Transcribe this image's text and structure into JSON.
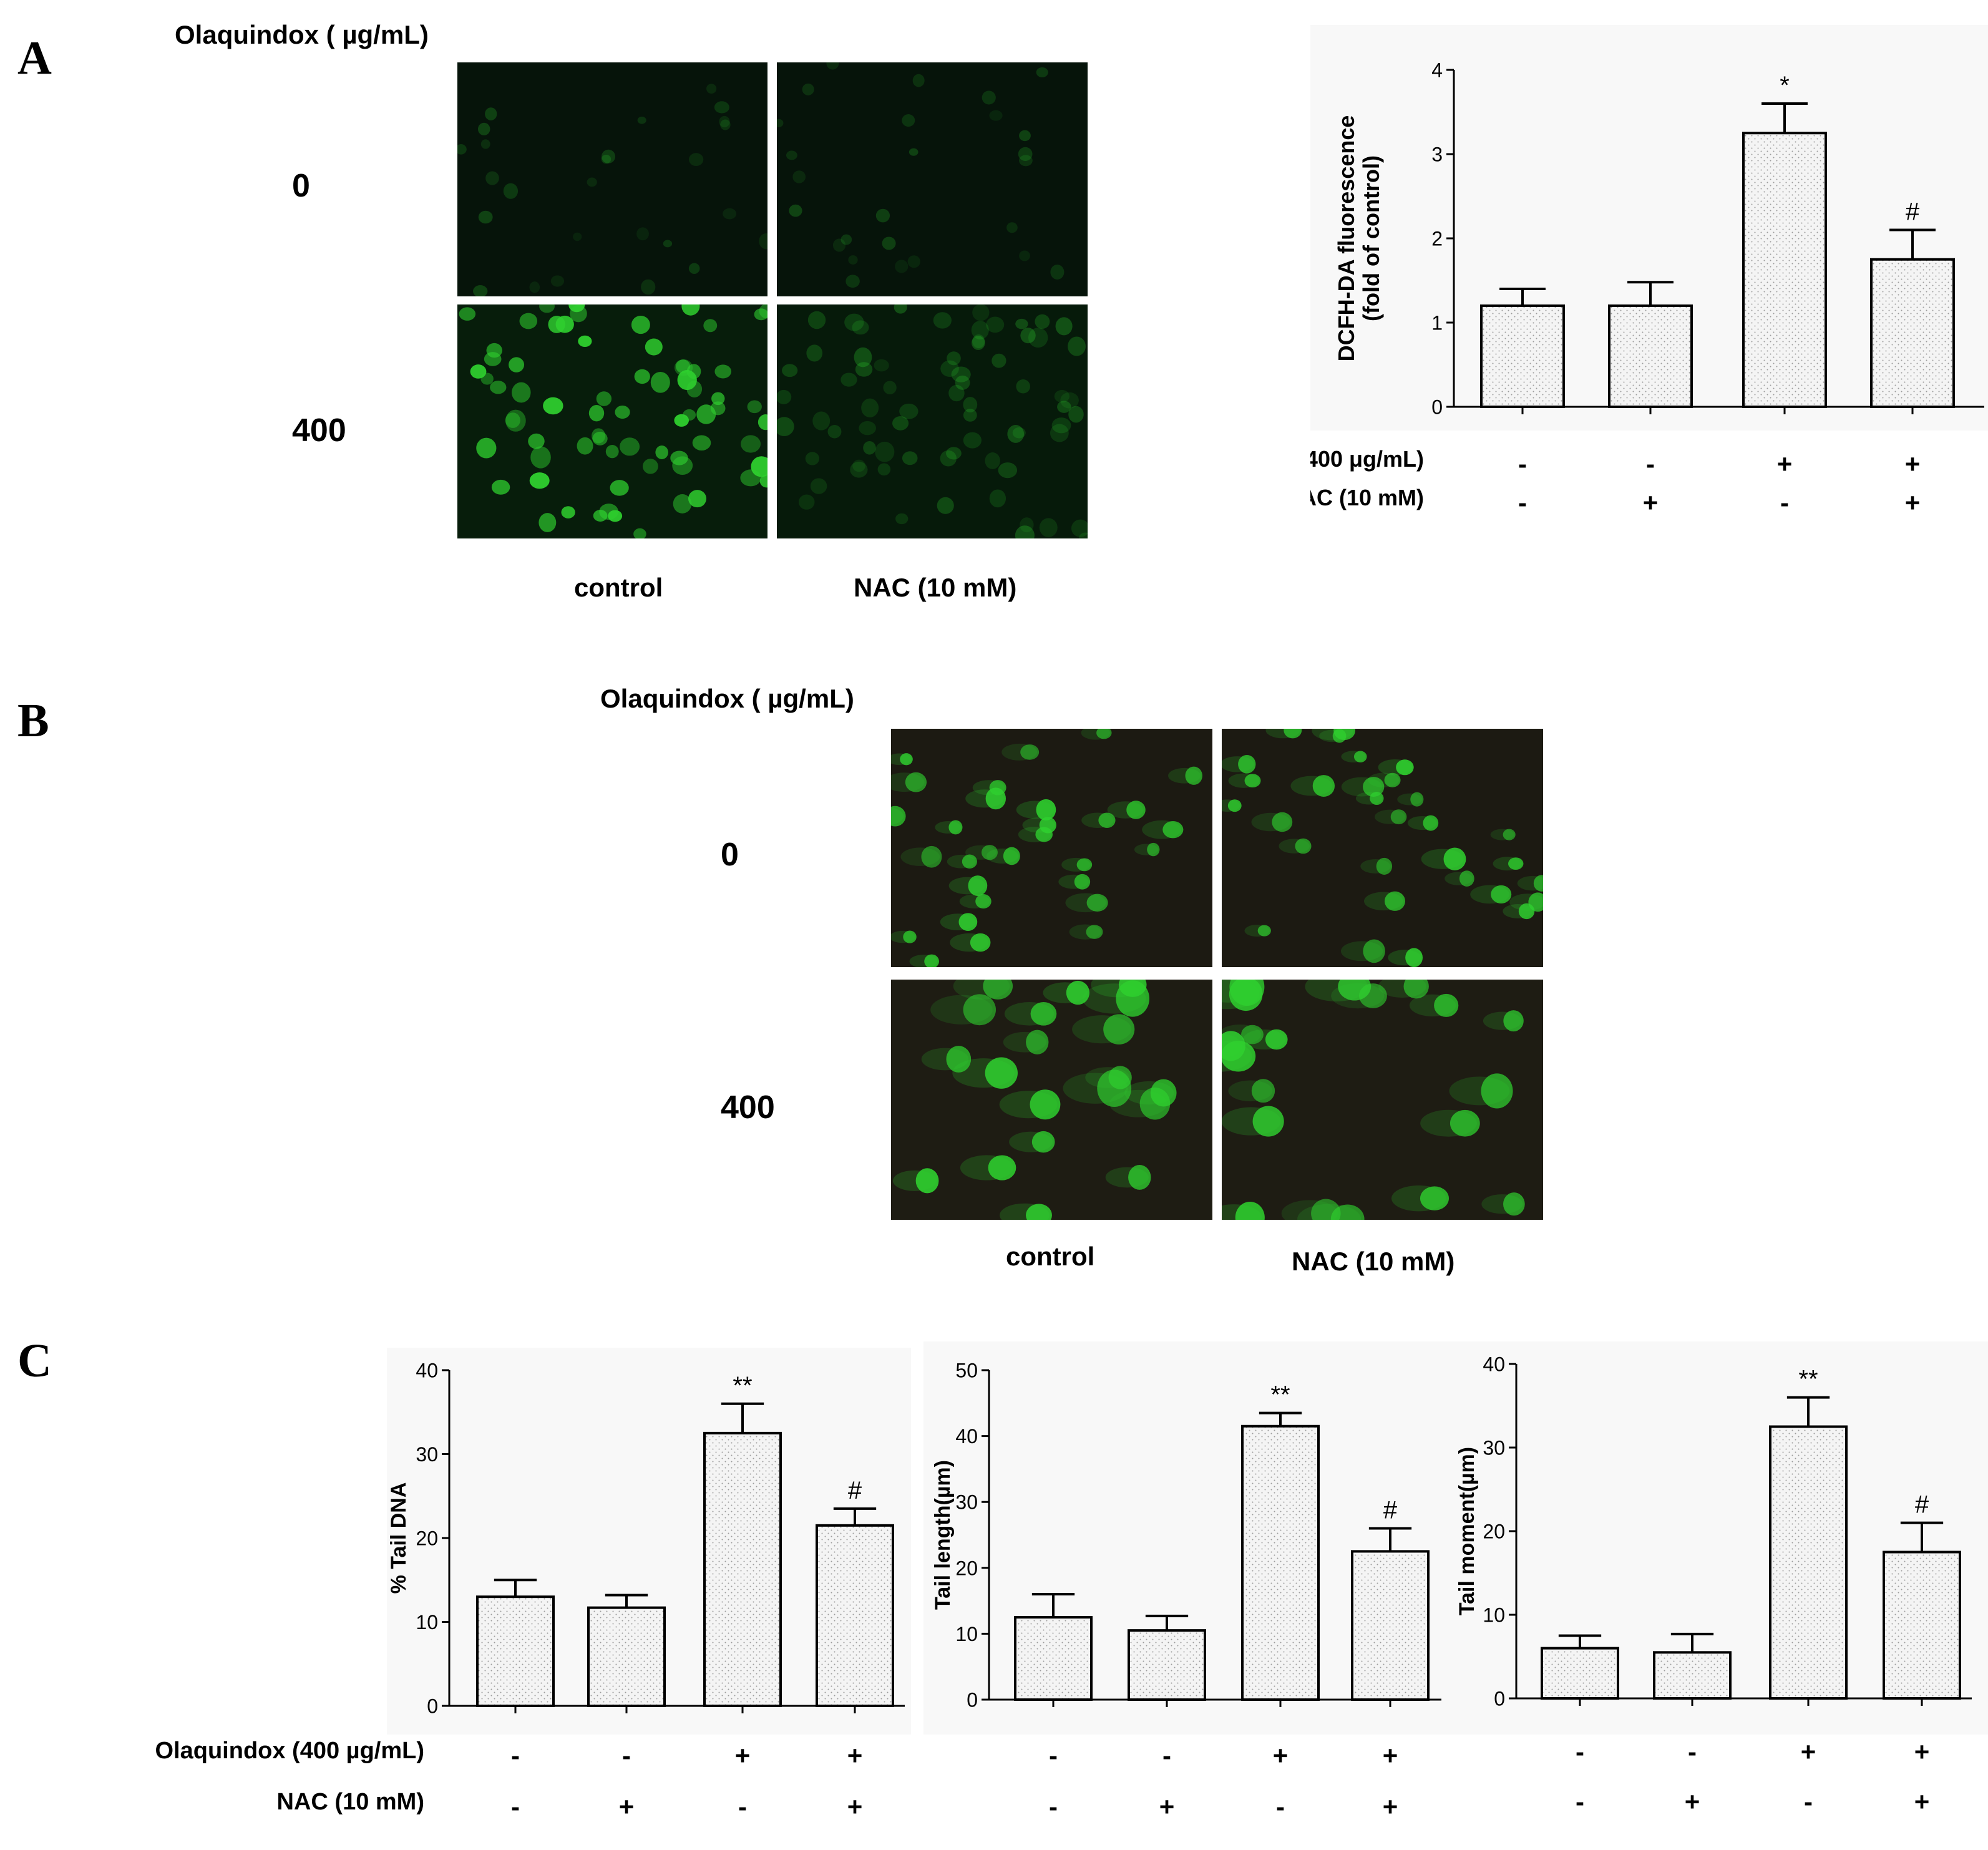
{
  "panels": {
    "A": {
      "letter": "A",
      "conc_title": "Olaquindox ( µg/mL)",
      "row_labels": [
        "0",
        "400"
      ],
      "col_labels": [
        "control",
        "NAC (10 mM)"
      ]
    },
    "B": {
      "letter": "B",
      "conc_title": "Olaquindox ( µg/mL)",
      "row_labels": [
        "0",
        "400"
      ],
      "col_labels": [
        "control",
        "NAC (10 mM)"
      ]
    },
    "C": {
      "letter": "C"
    }
  },
  "treatment_labels": {
    "olaquindox": "Olaquindox (400 µg/mL)",
    "olaquindox_alt": "Olaquindox (400 μg/mL)",
    "nac": "NAC (10 mM)"
  },
  "colors": {
    "bar_fill": "#f4f4f4",
    "bar_stipple": "#9a9a9a",
    "axis": "#000000",
    "fluorescence_green": "#2fd02f",
    "micro_bg_A": "#06140a",
    "micro_bg_B": "#1c1a12"
  },
  "chart_data": [
    {
      "id": "dcfh",
      "type": "bar",
      "panel": "A",
      "categories": [
        "Olaquindox -, NAC -",
        "Olaquindox -, NAC +",
        "Olaquindox +, NAC -",
        "Olaquindox +, NAC +"
      ],
      "olaquindox_signs": [
        "-",
        "-",
        "+",
        "+"
      ],
      "nac_signs": [
        "-",
        "+",
        "-",
        "+"
      ],
      "values": [
        1.2,
        1.2,
        3.25,
        1.75
      ],
      "errors": [
        0.2,
        0.28,
        0.35,
        0.35
      ],
      "annotations": [
        "",
        "",
        "*",
        "#"
      ],
      "ylabel_line1": "DCFH-DA fluorescence",
      "ylabel_line2": "(fold of control)",
      "ylim": [
        0,
        4
      ],
      "yticks": [
        0,
        1,
        2,
        3,
        4
      ]
    },
    {
      "id": "tail_dna",
      "type": "bar",
      "panel": "C",
      "categories": [
        "Olaquindox -, NAC -",
        "Olaquindox -, NAC +",
        "Olaquindox +, NAC -",
        "Olaquindox +, NAC +"
      ],
      "olaquindox_signs": [
        "-",
        "-",
        "+",
        "+"
      ],
      "nac_signs": [
        "-",
        "+",
        "-",
        "+"
      ],
      "values": [
        13,
        11.7,
        32.5,
        21.5
      ],
      "errors": [
        2,
        1.5,
        3.5,
        2
      ],
      "annotations": [
        "",
        "",
        "**",
        "#"
      ],
      "ylabel": "% Tail DNA",
      "ylim": [
        0,
        40
      ],
      "yticks": [
        0,
        10,
        20,
        30,
        40
      ]
    },
    {
      "id": "tail_length",
      "type": "bar",
      "panel": "C",
      "categories": [
        "Olaquindox -, NAC -",
        "Olaquindox -, NAC +",
        "Olaquindox +, NAC -",
        "Olaquindox +, NAC +"
      ],
      "olaquindox_signs": [
        "-",
        "-",
        "+",
        "+"
      ],
      "nac_signs": [
        "-",
        "+",
        "-",
        "+"
      ],
      "values": [
        12.5,
        10.5,
        41.5,
        22.5
      ],
      "errors": [
        3.5,
        2.2,
        2,
        3.5
      ],
      "annotations": [
        "",
        "",
        "**",
        "#"
      ],
      "ylabel": "Tail length(µm)",
      "ylim": [
        0,
        50
      ],
      "yticks": [
        0,
        10,
        20,
        30,
        40,
        50
      ]
    },
    {
      "id": "tail_moment",
      "type": "bar",
      "panel": "C",
      "categories": [
        "Olaquindox -, NAC -",
        "Olaquindox -, NAC +",
        "Olaquindox +, NAC -",
        "Olaquindox +, NAC +"
      ],
      "olaquindox_signs": [
        "-",
        "-",
        "+",
        "+"
      ],
      "nac_signs": [
        "-",
        "+",
        "-",
        "+"
      ],
      "values": [
        6,
        5.5,
        32.5,
        17.5
      ],
      "errors": [
        1.5,
        2.2,
        3.5,
        3.5
      ],
      "annotations": [
        "",
        "",
        "**",
        "#"
      ],
      "ylabel": "Tail moment(µm)",
      "ylim": [
        0,
        40
      ],
      "yticks": [
        0,
        10,
        20,
        30,
        40
      ]
    }
  ]
}
